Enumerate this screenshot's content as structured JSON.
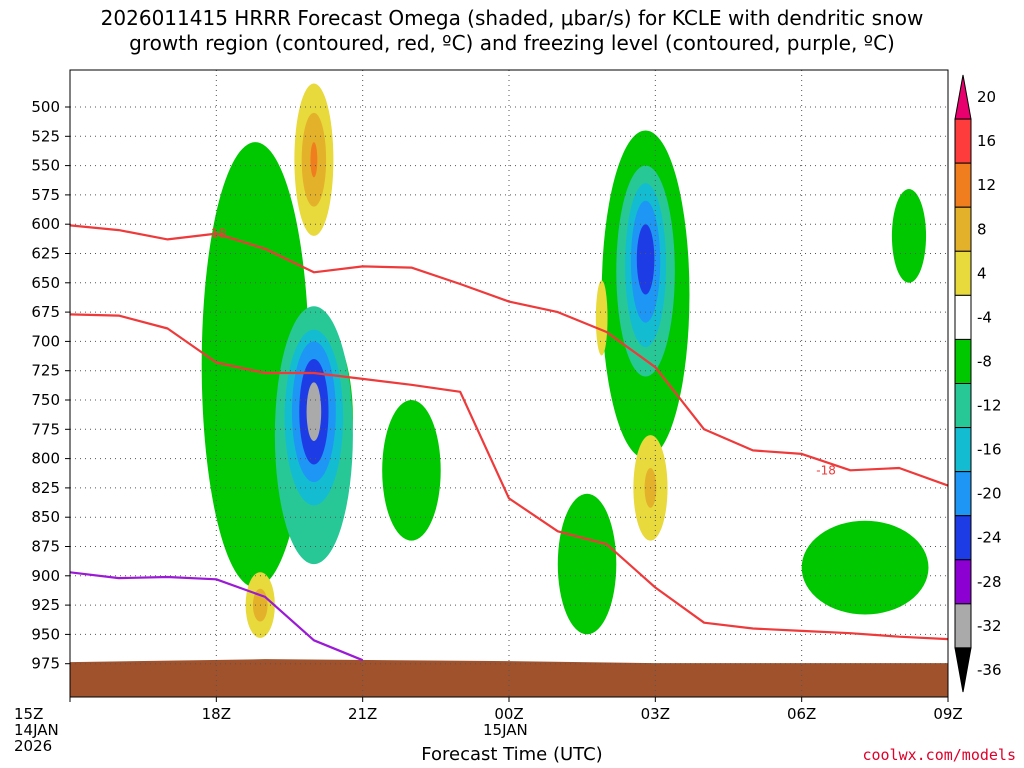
{
  "chart_data": {
    "type": "heatmap",
    "title": "2026011415 HRRR Forecast Omega (shaded, μbar/s) for KCLE with dendritic snow\ngrowth region (contoured, red, ºC) and freezing level (contoured, purple, ºC)",
    "xlabel": "Forecast Time (UTC)",
    "ylabel": "",
    "x_ticks": [
      {
        "hour": 0,
        "label": "15Z",
        "sub": [
          "14JAN",
          "2026"
        ]
      },
      {
        "hour": 3,
        "label": "18Z",
        "sub": []
      },
      {
        "hour": 6,
        "label": "21Z",
        "sub": []
      },
      {
        "hour": 9,
        "label": "00Z",
        "sub": [
          "15JAN"
        ]
      },
      {
        "hour": 12,
        "label": "03Z",
        "sub": []
      },
      {
        "hour": 15,
        "label": "06Z",
        "sub": []
      },
      {
        "hour": 18,
        "label": "09Z",
        "sub": []
      }
    ],
    "xlim": [
      0,
      18
    ],
    "y_ticks": [
      500,
      525,
      550,
      575,
      600,
      625,
      650,
      675,
      700,
      725,
      750,
      775,
      800,
      825,
      850,
      875,
      900,
      925,
      950,
      975
    ],
    "ylim": [
      472,
      980
    ],
    "colorbar": {
      "levels": [
        20,
        16,
        12,
        8,
        4,
        -4,
        -8,
        -12,
        -16,
        -20,
        -24,
        -28,
        -32,
        -36
      ],
      "colors": [
        "#e8006e",
        "#ff3c3c",
        "#f07d1e",
        "#e3b12a",
        "#e8d93c",
        "#ffffff",
        "#00c800",
        "#28c896",
        "#14bcd2",
        "#1e96f5",
        "#1e3ce6",
        "#8c00d2",
        "#aaaaaa",
        "#000000"
      ]
    },
    "contours": [
      {
        "name": "dgz-top",
        "value": -18,
        "color": "#ee3a3a",
        "x": [
          0,
          1,
          2,
          3,
          4,
          5,
          6,
          7,
          8,
          9,
          10,
          11,
          12,
          13,
          14,
          15,
          16,
          17,
          18
        ],
        "p": [
          601,
          605,
          613,
          608,
          621,
          641,
          636,
          637,
          651,
          666,
          675,
          692,
          722,
          775,
          793,
          796,
          810,
          808,
          823
        ],
        "label": "-18"
      },
      {
        "name": "dgz-bottom",
        "value": -12,
        "color": "#ee3a3a",
        "x": [
          0,
          1,
          2,
          3,
          4,
          5,
          6,
          7,
          8,
          9,
          10,
          11,
          12,
          13,
          14,
          15,
          16,
          17,
          18
        ],
        "p": [
          677,
          678,
          689,
          718,
          727,
          727,
          732,
          737,
          743,
          834,
          862,
          873,
          910,
          940,
          945,
          947,
          949,
          952,
          954
        ],
        "label": ""
      },
      {
        "name": "freezing-level",
        "value": 0,
        "color": "#9a1ad6",
        "x": [
          0,
          1,
          2,
          3,
          4,
          5,
          6
        ],
        "p": [
          897,
          902,
          901,
          903,
          918,
          955,
          972
        ],
        "label": ""
      }
    ],
    "terrain_top_p": 972,
    "blobs": [
      {
        "x": 2.2,
        "p": 757,
        "rx": 0.9,
        "rp": 150,
        "level": -4
      },
      {
        "x": 4.0,
        "p": 700,
        "rx": 1.7,
        "rp": 250,
        "level": -4
      },
      {
        "x": 5.5,
        "p": 855,
        "rx": 2.0,
        "rp": 110,
        "level": -4
      },
      {
        "x": 4.6,
        "p": 530,
        "rx": 1.4,
        "rp": 70,
        "level": -4
      },
      {
        "x": 11.6,
        "p": 700,
        "rx": 2.6,
        "rp": 240,
        "level": -4
      },
      {
        "x": 10.3,
        "p": 490,
        "rx": 1.4,
        "rp": 120,
        "level": -4
      },
      {
        "x": 16.5,
        "p": 870,
        "rx": 2.4,
        "rp": 95,
        "level": -4
      },
      {
        "x": 17.2,
        "p": 615,
        "rx": 0.9,
        "rp": 100,
        "level": -4
      },
      {
        "x": 11.6,
        "p": 880,
        "rx": 1.2,
        "rp": 80,
        "level": -4
      },
      {
        "x": 3.8,
        "p": 720,
        "rx": 1.1,
        "rp": 190,
        "level": -8
      },
      {
        "x": 5.1,
        "p": 765,
        "rx": 0.7,
        "rp": 80,
        "level": -8
      },
      {
        "x": 11.8,
        "p": 660,
        "rx": 0.9,
        "rp": 140,
        "level": -8
      },
      {
        "x": 16.3,
        "p": 893,
        "rx": 1.3,
        "rp": 40,
        "level": -8
      },
      {
        "x": 17.2,
        "p": 610,
        "rx": 0.35,
        "rp": 40,
        "level": -8
      },
      {
        "x": 7.0,
        "p": 810,
        "rx": 0.6,
        "rp": 60,
        "level": -8
      },
      {
        "x": 10.6,
        "p": 890,
        "rx": 0.6,
        "rp": 60,
        "level": -8
      },
      {
        "x": 5.0,
        "p": 780,
        "rx": 0.8,
        "rp": 110,
        "level": -12
      },
      {
        "x": 11.8,
        "p": 640,
        "rx": 0.6,
        "rp": 90,
        "level": -12
      },
      {
        "x": 5.0,
        "p": 765,
        "rx": 0.6,
        "rp": 75,
        "level": -16
      },
      {
        "x": 11.8,
        "p": 635,
        "rx": 0.42,
        "rp": 70,
        "level": -16
      },
      {
        "x": 5.0,
        "p": 760,
        "rx": 0.45,
        "rp": 60,
        "level": -20
      },
      {
        "x": 11.8,
        "p": 632,
        "rx": 0.3,
        "rp": 52,
        "level": -20
      },
      {
        "x": 5.0,
        "p": 760,
        "rx": 0.3,
        "rp": 45,
        "level": -24
      },
      {
        "x": 11.8,
        "p": 630,
        "rx": 0.18,
        "rp": 30,
        "level": -24
      },
      {
        "x": 5.0,
        "p": 760,
        "rx": 0.15,
        "rp": 25,
        "level": -32
      },
      {
        "x": 5.0,
        "p": 545,
        "rx": 0.4,
        "rp": 65,
        "level": 4
      },
      {
        "x": 5.0,
        "p": 545,
        "rx": 0.25,
        "rp": 40,
        "level": 8
      },
      {
        "x": 5.0,
        "p": 545,
        "rx": 0.07,
        "rp": 15,
        "level": 12
      },
      {
        "x": 10.9,
        "p": 680,
        "rx": 0.12,
        "rp": 32,
        "level": 4
      },
      {
        "x": 11.9,
        "p": 825,
        "rx": 0.35,
        "rp": 45,
        "level": 4
      },
      {
        "x": 11.9,
        "p": 825,
        "rx": 0.12,
        "rp": 17,
        "level": 8
      },
      {
        "x": 3.9,
        "p": 925,
        "rx": 0.3,
        "rp": 28,
        "level": 4
      },
      {
        "x": 3.9,
        "p": 925,
        "rx": 0.15,
        "rp": 14,
        "level": 8
      }
    ]
  },
  "credit": "coolwx.com/models"
}
